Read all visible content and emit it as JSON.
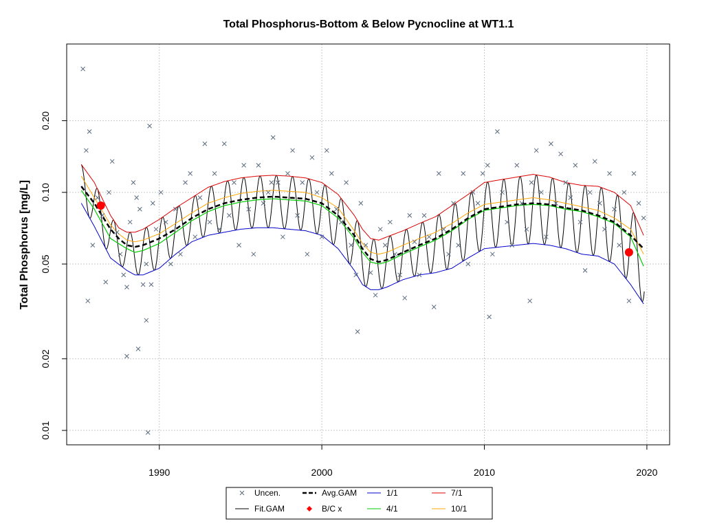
{
  "chart_data": {
    "type": "line",
    "title": "Total Phosphorus-Bottom & Below Pycnocline at WT1.1",
    "xlabel": "",
    "ylabel": "Total Phosphorus [mg/L]",
    "xlim": [
      1984.3,
      2021.4
    ],
    "ylim": [
      0.0087,
      0.42
    ],
    "y_scale": "log",
    "x_ticks": [
      1990,
      2000,
      2010,
      2020
    ],
    "x_tick_labels": [
      "1990",
      "2000",
      "2010",
      "2020"
    ],
    "y_ticks": [
      0.01,
      0.02,
      0.05,
      0.1,
      0.2
    ],
    "y_tick_labels": [
      "0.01",
      "0.02",
      "0.05",
      "0.10",
      "0.20"
    ],
    "grid": true,
    "legend": {
      "position": "bottom",
      "entries": [
        "Uncen.",
        "Fit.GAM",
        "Avg.GAM",
        "B/C x",
        "1/1",
        "4/1",
        "7/1",
        "10/1"
      ]
    },
    "colors": {
      "uncen": "#5a6a7e",
      "fit": "#000000",
      "avg": "#000000",
      "bc": "#ff0000",
      "d1": "#0000cc",
      "d4": "#00cc00",
      "d7": "#dd0000",
      "d10": "#ffa500"
    },
    "series": [
      {
        "name": "Avg.GAM",
        "x": [
          1985.2,
          1986,
          1987,
          1987.5,
          1988,
          1988.5,
          1989,
          1990,
          1991,
          1992,
          1993,
          1994,
          1995,
          1996,
          1997,
          1998,
          1999,
          2000,
          2001,
          2002,
          2002.5,
          2003,
          2003.5,
          2004,
          2005,
          2006,
          2007,
          2008,
          2009,
          2010,
          2011,
          2012,
          2013,
          2014,
          2015,
          2016,
          2017,
          2018,
          2019,
          2019.8
        ],
        "y": [
          0.106,
          0.09,
          0.07,
          0.064,
          0.06,
          0.059,
          0.06,
          0.064,
          0.07,
          0.078,
          0.085,
          0.09,
          0.093,
          0.095,
          0.096,
          0.095,
          0.094,
          0.09,
          0.08,
          0.066,
          0.058,
          0.0525,
          0.051,
          0.052,
          0.056,
          0.06,
          0.064,
          0.07,
          0.078,
          0.085,
          0.087,
          0.089,
          0.09,
          0.089,
          0.086,
          0.084,
          0.08,
          0.075,
          0.066,
          0.058
        ]
      },
      {
        "name": "1/1",
        "x": [
          1985.2,
          1986,
          1987,
          1988,
          1988.5,
          1989,
          1990,
          1991,
          1992,
          1993,
          1994,
          1995,
          1996,
          1997,
          1998,
          1999,
          2000,
          2001,
          2002,
          2002.5,
          2003,
          2003.5,
          2004,
          2005,
          2006,
          2007,
          2008,
          2009,
          2010,
          2011,
          2012,
          2013,
          2014,
          2015,
          2016,
          2017,
          2018,
          2019,
          2019.8
        ],
        "y": [
          0.09,
          0.072,
          0.053,
          0.047,
          0.045,
          0.045,
          0.048,
          0.055,
          0.062,
          0.066,
          0.068,
          0.07,
          0.071,
          0.071,
          0.07,
          0.069,
          0.066,
          0.058,
          0.047,
          0.041,
          0.039,
          0.039,
          0.04,
          0.043,
          0.045,
          0.046,
          0.048,
          0.053,
          0.058,
          0.059,
          0.06,
          0.061,
          0.06,
          0.058,
          0.055,
          0.054,
          0.05,
          0.041,
          0.034
        ]
      },
      {
        "name": "4/1",
        "x": [
          1985.2,
          1986,
          1987,
          1988,
          1988.5,
          1989,
          1990,
          1991,
          1992,
          1993,
          1994,
          1995,
          1996,
          1997,
          1998,
          1999,
          2000,
          2001,
          2002,
          2002.5,
          2003,
          2003.5,
          2004,
          2005,
          2006,
          2007,
          2008,
          2009,
          2010,
          2011,
          2012,
          2013,
          2014,
          2015,
          2016,
          2017,
          2018,
          2019,
          2019.8
        ],
        "y": [
          0.102,
          0.085,
          0.064,
          0.058,
          0.056,
          0.057,
          0.061,
          0.068,
          0.076,
          0.083,
          0.088,
          0.091,
          0.093,
          0.094,
          0.093,
          0.092,
          0.088,
          0.078,
          0.064,
          0.056,
          0.051,
          0.05,
          0.051,
          0.055,
          0.059,
          0.063,
          0.069,
          0.077,
          0.084,
          0.086,
          0.088,
          0.089,
          0.088,
          0.085,
          0.083,
          0.079,
          0.074,
          0.065,
          0.049
        ]
      },
      {
        "name": "7/1",
        "x": [
          1985.2,
          1986,
          1987,
          1987.5,
          1988,
          1988.5,
          1989,
          1990,
          1991,
          1992,
          1993,
          1994,
          1995,
          1996,
          1997,
          1998,
          1999,
          2000,
          2001,
          2002,
          2002.5,
          2003,
          2003.5,
          2004,
          2005,
          2006,
          2007,
          2008,
          2009,
          2010,
          2011,
          2012,
          2013,
          2014,
          2015,
          2016,
          2017,
          2018,
          2019,
          2019.8
        ],
        "y": [
          0.131,
          0.11,
          0.08,
          0.071,
          0.068,
          0.068,
          0.07,
          0.077,
          0.086,
          0.095,
          0.105,
          0.111,
          0.115,
          0.117,
          0.118,
          0.117,
          0.115,
          0.11,
          0.098,
          0.08,
          0.07,
          0.064,
          0.063,
          0.065,
          0.069,
          0.074,
          0.079,
          0.088,
          0.098,
          0.11,
          0.113,
          0.116,
          0.119,
          0.116,
          0.11,
          0.107,
          0.106,
          0.1,
          0.088,
          0.066
        ]
      },
      {
        "name": "10/1",
        "x": [
          1985.2,
          1986,
          1987,
          1987.5,
          1988,
          1988.5,
          1989,
          1990,
          1991,
          1992,
          1993,
          1994,
          1995,
          1996,
          1997,
          1998,
          1999,
          2000,
          2001,
          2002,
          2002.5,
          2003,
          2003.5,
          2004,
          2005,
          2006,
          2007,
          2008,
          2009,
          2010,
          2011,
          2012,
          2013,
          2014,
          2015,
          2016,
          2017,
          2018,
          2019,
          2019.8
        ],
        "y": [
          0.117,
          0.095,
          0.073,
          0.067,
          0.063,
          0.062,
          0.063,
          0.067,
          0.074,
          0.082,
          0.09,
          0.095,
          0.099,
          0.101,
          0.102,
          0.101,
          0.1,
          0.095,
          0.086,
          0.069,
          0.061,
          0.056,
          0.055,
          0.056,
          0.06,
          0.064,
          0.068,
          0.074,
          0.082,
          0.089,
          0.091,
          0.093,
          0.095,
          0.093,
          0.09,
          0.087,
          0.084,
          0.078,
          0.07,
          0.055
        ]
      },
      {
        "name": "Fit.GAM",
        "x_start": 1985.2,
        "x_end": 2019.85,
        "cycle_years": 1.0,
        "description_of_values": "oscillates each year between the 1/1 (low) and 7/1 (high) curves"
      },
      {
        "name": "B/C x",
        "x": [
          1986.4,
          2018.9
        ],
        "y": [
          0.088,
          0.056
        ]
      },
      {
        "name": "Uncen.",
        "x": [
          1985.3,
          1985.5,
          1985.7,
          1985.9,
          1986.2,
          1986.5,
          1986.7,
          1986.9,
          1987.1,
          1987.4,
          1987.6,
          1987.8,
          1988.0,
          1988.2,
          1988.4,
          1988.6,
          1988.8,
          1989.0,
          1989.2,
          1989.4,
          1989.6,
          1989.8,
          1990.1,
          1990.4,
          1990.7,
          1991.0,
          1991.3,
          1991.6,
          1991.9,
          1992.2,
          1992.5,
          1992.8,
          1993.1,
          1993.4,
          1993.7,
          1994.0,
          1994.3,
          1994.6,
          1994.9,
          1995.2,
          1995.5,
          1995.8,
          1996.1,
          1996.4,
          1996.7,
          1997.0,
          1997.3,
          1997.6,
          1997.9,
          1998.2,
          1998.5,
          1998.8,
          1999.1,
          1999.4,
          1999.7,
          2000.0,
          2000.3,
          2000.6,
          2000.9,
          2001.2,
          2001.5,
          2001.8,
          2002.1,
          2002.4,
          2002.7,
          2003.0,
          2003.3,
          2003.6,
          2003.9,
          2004.2,
          2004.5,
          2004.8,
          2005.1,
          2005.4,
          2005.7,
          2006.0,
          2006.3,
          2006.6,
          2006.9,
          2007.2,
          2007.5,
          2007.8,
          2008.1,
          2008.4,
          2008.7,
          2009.0,
          2009.3,
          2009.6,
          2009.9,
          2010.2,
          2010.5,
          2010.8,
          2011.1,
          2011.4,
          2011.7,
          2012.0,
          2012.3,
          2012.6,
          2012.9,
          2013.2,
          2013.5,
          2013.8,
          2014.1,
          2014.4,
          2014.7,
          2015.0,
          2015.3,
          2015.6,
          2015.9,
          2016.2,
          2016.5,
          2016.8,
          2017.1,
          2017.4,
          2017.7,
          2018.0,
          2018.3,
          2018.6,
          2018.9,
          2019.2,
          2019.5,
          2019.8,
          1985.6,
          1988.0,
          1989.3,
          1989.2,
          1988.7,
          1989.5,
          1996.9,
          2010.3,
          2002.2,
          2012.8
        ],
        "y": [
          0.33,
          0.15,
          0.18,
          0.06,
          0.095,
          0.08,
          0.042,
          0.1,
          0.135,
          0.068,
          0.055,
          0.045,
          0.04,
          0.075,
          0.11,
          0.095,
          0.085,
          0.041,
          0.05,
          0.19,
          0.09,
          0.07,
          0.1,
          0.075,
          0.05,
          0.085,
          0.055,
          0.11,
          0.12,
          0.065,
          0.095,
          0.16,
          0.075,
          0.12,
          0.07,
          0.16,
          0.08,
          0.11,
          0.06,
          0.13,
          0.085,
          0.055,
          0.13,
          0.09,
          0.1,
          0.17,
          0.11,
          0.065,
          0.12,
          0.15,
          0.08,
          0.11,
          0.055,
          0.14,
          0.1,
          0.065,
          0.15,
          0.12,
          0.085,
          0.075,
          0.11,
          0.06,
          0.045,
          0.09,
          0.06,
          0.046,
          0.037,
          0.07,
          0.06,
          0.075,
          0.055,
          0.045,
          0.036,
          0.08,
          0.062,
          0.045,
          0.08,
          0.065,
          0.033,
          0.12,
          0.07,
          0.055,
          0.09,
          0.06,
          0.12,
          0.05,
          0.1,
          0.09,
          0.12,
          0.13,
          0.055,
          0.18,
          0.1,
          0.075,
          0.06,
          0.13,
          0.09,
          0.07,
          0.11,
          0.15,
          0.1,
          0.065,
          0.16,
          0.09,
          0.145,
          0.11,
          0.095,
          0.13,
          0.075,
          0.047,
          0.1,
          0.135,
          0.09,
          0.07,
          0.12,
          0.085,
          0.06,
          0.1,
          0.035,
          0.12,
          0.09,
          0.078,
          0.035,
          0.0205,
          0.0098,
          0.029,
          0.022,
          0.041,
          0.11,
          0.03,
          0.026,
          0.035
        ]
      }
    ]
  }
}
